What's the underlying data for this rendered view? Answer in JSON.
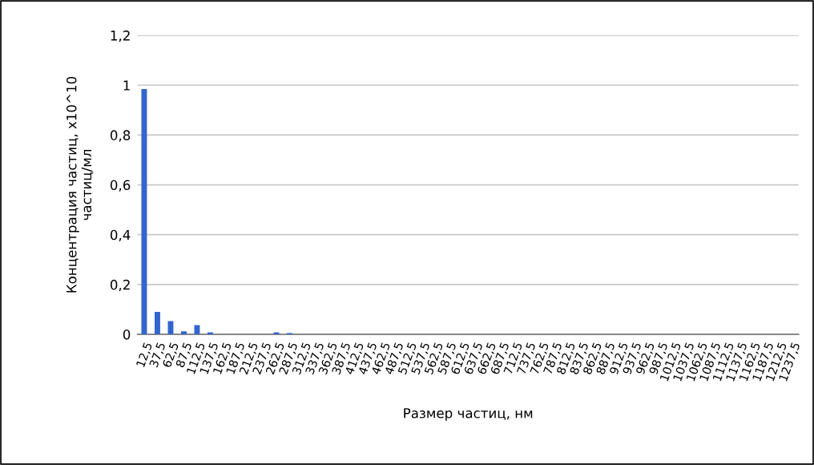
{
  "chart_data": {
    "type": "bar",
    "xlabel": "Размер частиц, нм",
    "ylabel": "Концентрация частиц, x10^10\nчастиц/мл",
    "categories": [
      "12,5",
      "37,5",
      "62,5",
      "87,5",
      "112,5",
      "137,5",
      "162,5",
      "187,5",
      "212,5",
      "237,5",
      "262,5",
      "287,5",
      "312,5",
      "337,5",
      "362,5",
      "387,5",
      "412,5",
      "437,5",
      "462,5",
      "487,5",
      "512,5",
      "537,5",
      "562,5",
      "587,5",
      "612,5",
      "637,5",
      "662,5",
      "687,5",
      "712,5",
      "737,5",
      "762,5",
      "787,5",
      "812,5",
      "837,5",
      "862,5",
      "887,5",
      "912,5",
      "937,5",
      "962,5",
      "987,5",
      "1012,5",
      "1037,5",
      "1062,5",
      "1087,5",
      "1112,5",
      "1137,5",
      "1162,5",
      "1187,5",
      "1212,5",
      "1237,5"
    ],
    "values": [
      0.985,
      0.09,
      0.053,
      0.012,
      0.037,
      0.008,
      0,
      0,
      0,
      0,
      0.008,
      0.005,
      0,
      0,
      0,
      0,
      0,
      0,
      0,
      0,
      0,
      0,
      0,
      0,
      0,
      0,
      0,
      0,
      0,
      0,
      0,
      0,
      0,
      0,
      0,
      0,
      0,
      0,
      0,
      0,
      0,
      0,
      0,
      0,
      0,
      0,
      0,
      0,
      0,
      0
    ],
    "color": "#3366cc",
    "ylim": [
      0,
      1.2
    ],
    "yticks": [
      0,
      {
        "value": 0.2,
        "label": "0,2"
      },
      {
        "value": 0.4,
        "label": "0,4"
      },
      {
        "value": 0.6,
        "label": "0,6"
      },
      {
        "value": 0.8,
        "label": "0,8"
      },
      1,
      {
        "value": 1.2,
        "label": "1,2"
      }
    ],
    "grid": "y"
  }
}
